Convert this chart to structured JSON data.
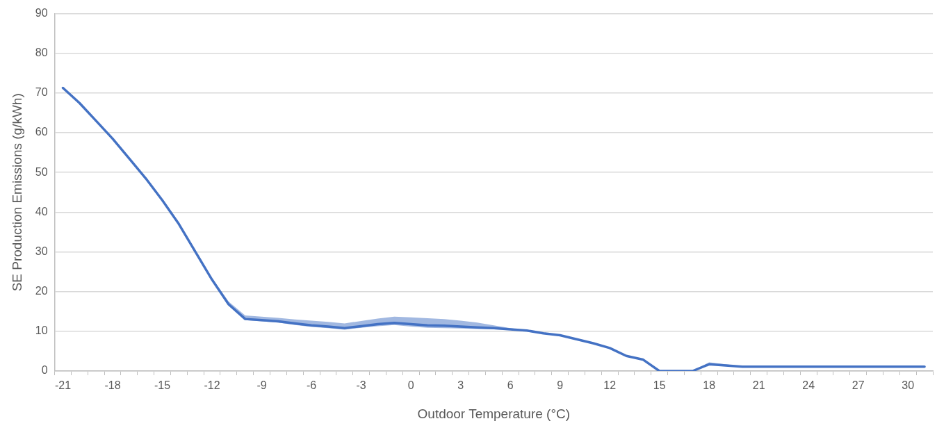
{
  "chart_data": {
    "type": "line",
    "xlabel": "Outdoor Temperature (°C)",
    "ylabel": "SE Production Emissions (g/kWh)",
    "categories": [
      "-21",
      null,
      null,
      "-18",
      null,
      null,
      "-15",
      null,
      null,
      "-12",
      null,
      null,
      "-9",
      null,
      null,
      "-6",
      null,
      null,
      "-3",
      null,
      null,
      "0",
      null,
      null,
      "3",
      null,
      null,
      "6",
      null,
      null,
      "9",
      null,
      null,
      "12",
      null,
      null,
      "15",
      null,
      null,
      "18",
      null,
      null,
      "21",
      null,
      null,
      "24",
      null,
      null,
      "27",
      null,
      null,
      "30",
      null
    ],
    "series": [
      {
        "color": "#4472c4",
        "values": [
          71.3,
          67.5,
          63,
          58.5,
          53.5,
          48.5,
          43,
          37,
          30,
          23,
          16.8,
          13.1,
          12.8,
          12.5,
          12,
          11.5,
          11.2,
          10.8,
          11.3,
          11.8,
          12.1,
          11.8,
          11.5,
          11.4,
          11.2,
          11,
          10.8,
          10.5,
          10.2,
          9.5,
          9,
          8,
          7,
          5.8,
          3.8,
          2.9,
          0,
          0,
          0,
          1.7,
          1.4,
          1.1,
          1.1,
          1.1,
          1.1,
          1.1,
          1.1,
          1.1,
          1.1,
          1.1,
          1.1,
          1.1,
          1.1
        ],
        "upper": [
          71.6,
          67.8,
          63.3,
          58.8,
          53.8,
          48.8,
          43.3,
          37.3,
          30.3,
          23.3,
          17.5,
          14,
          13.7,
          13.4,
          13,
          12.7,
          12.4,
          12,
          12.6,
          13.2,
          13.7,
          13.5,
          13.3,
          13.1,
          12.7,
          12.2,
          11.5,
          10.8,
          10.2,
          9.5,
          9,
          8,
          7,
          5.8,
          3.8,
          2.9,
          0,
          0,
          0,
          2.2,
          1.7,
          1.2,
          1.1,
          1.1,
          1.1,
          1.1,
          1.1,
          1.1,
          1.1,
          1.1,
          1.1,
          1.1,
          1.1
        ],
        "lower": [
          71.1,
          67.3,
          62.8,
          58.3,
          53.3,
          48.3,
          42.8,
          36.8,
          29.8,
          22.8,
          16.5,
          12.8,
          12.5,
          12.2,
          11.6,
          11.1,
          10.8,
          10.4,
          10.9,
          11.3,
          11.6,
          11.2,
          10.9,
          10.8,
          10.7,
          10.6,
          10.5,
          10.4,
          10.2,
          9.5,
          9,
          8,
          7,
          5.8,
          3.8,
          2.9,
          0,
          0,
          0,
          1.6,
          1.3,
          1.1,
          1.1,
          1.1,
          1.1,
          1.1,
          1.1,
          1.1,
          1.1,
          1.1,
          1.1,
          1.1,
          1.1
        ]
      }
    ],
    "ylim": [
      0,
      90
    ],
    "yticks": [
      0,
      10,
      20,
      30,
      40,
      50,
      60,
      70,
      80,
      90
    ],
    "grid": "y",
    "legend": false,
    "marker": "none",
    "line_style": "solid"
  }
}
